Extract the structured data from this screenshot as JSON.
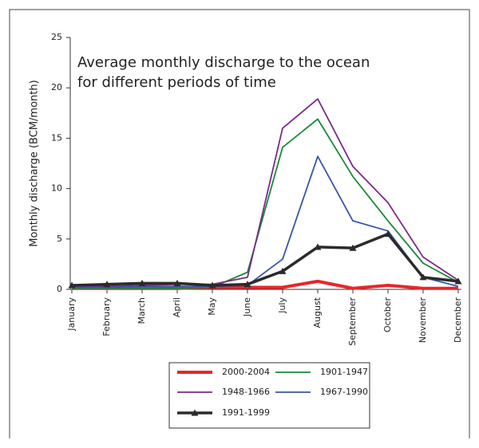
{
  "chart_data": {
    "type": "line",
    "title": [
      "Average monthly discharge to the ocean",
      "for different periods of time"
    ],
    "y_label": "Monthly discharge (BCM/month)",
    "categories": [
      "January",
      "February",
      "March",
      "April",
      "May",
      "June",
      "July",
      "August",
      "September",
      "October",
      "November",
      "December"
    ],
    "series": [
      {
        "name": "2000-2004",
        "color": "#e8262a",
        "line_width": 4,
        "marker": "none",
        "values": [
          0.1,
          0.1,
          0.1,
          0.1,
          0.2,
          0.2,
          0.2,
          0.8,
          0.1,
          0.4,
          0.1,
          0.1
        ]
      },
      {
        "name": "1901-1947",
        "color": "#1a8a3a",
        "line_width": 1.8,
        "marker": "none",
        "values": [
          0.1,
          0.1,
          0.1,
          0.1,
          0.2,
          1.7,
          14.1,
          16.9,
          11.2,
          6.8,
          2.6,
          0.7
        ]
      },
      {
        "name": "1948-1966",
        "color": "#7b2a8a",
        "line_width": 1.8,
        "marker": "none",
        "values": [
          0.3,
          0.3,
          0.4,
          0.5,
          0.5,
          1.2,
          16,
          18.9,
          12.2,
          8.6,
          3.2,
          0.9
        ]
      },
      {
        "name": "1967-1990",
        "color": "#3a55a8",
        "line_width": 1.8,
        "marker": "none",
        "values": [
          0.2,
          0.2,
          0.3,
          0.3,
          0.3,
          0.4,
          3,
          13.2,
          6.8,
          5.8,
          1.2,
          0.3
        ]
      },
      {
        "name": "1991-1999",
        "color": "#2b2b2b",
        "line_width": 3.5,
        "marker": "triangle",
        "values": [
          0.4,
          0.5,
          0.6,
          0.6,
          0.4,
          0.5,
          1.8,
          4.2,
          4.1,
          5.5,
          1.2,
          0.8
        ]
      }
    ],
    "ylim": [
      0,
      25
    ],
    "yticks": [
      0,
      5,
      10,
      15,
      20,
      25
    ],
    "grid": false,
    "legend": "bottom"
  }
}
